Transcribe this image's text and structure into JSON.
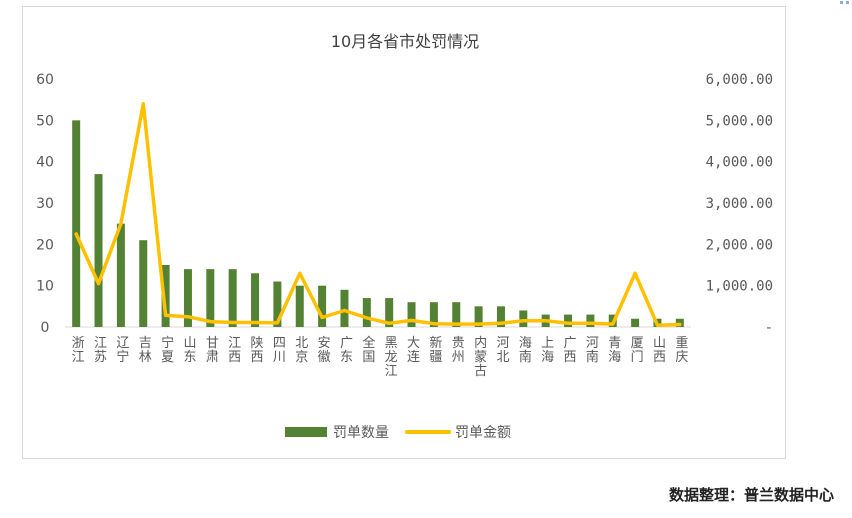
{
  "chart_data": {
    "type": "bar+line",
    "title": "10月各省市处罚情况",
    "categories": [
      "浙江",
      "江苏",
      "辽宁",
      "吉林",
      "宁夏",
      "山东",
      "甘肃",
      "江西",
      "陕西",
      "四川",
      "北京",
      "安徽",
      "广东",
      "全国",
      "黑龙江",
      "大连",
      "新疆",
      "贵州",
      "内蒙古",
      "河北",
      "海南",
      "上海",
      "广西",
      "河南",
      "青海",
      "厦门",
      "山西",
      "重庆"
    ],
    "series": [
      {
        "name": "罚单数量",
        "type": "bar",
        "axis": "left",
        "color": "#548235",
        "values": [
          50,
          37,
          25,
          21,
          15,
          14,
          14,
          14,
          13,
          11,
          10,
          10,
          9,
          7,
          7,
          6,
          6,
          6,
          5,
          5,
          4,
          3,
          3,
          3,
          3,
          2,
          2,
          2
        ]
      },
      {
        "name": "罚单金额",
        "type": "line",
        "axis": "right",
        "color": "#FFC000",
        "values": [
          2250,
          1050,
          2500,
          5400,
          280,
          250,
          130,
          110,
          110,
          100,
          1300,
          230,
          400,
          220,
          90,
          160,
          80,
          70,
          70,
          90,
          150,
          150,
          90,
          90,
          70,
          1300,
          40,
          60
        ]
      }
    ],
    "left_axis": {
      "min": 0,
      "max": 60,
      "ticks": [
        "0",
        "10",
        "20",
        "30",
        "40",
        "50",
        "60"
      ]
    },
    "right_axis": {
      "min": 0,
      "max": 6000,
      "ticks": [
        "-",
        "1,000.00",
        "2,000.00",
        "3,000.00",
        "4,000.00",
        "5,000.00",
        "6,000.00"
      ]
    },
    "legend_position": "bottom",
    "grid": false
  },
  "source_note": "数据整理：普兰数据中心"
}
